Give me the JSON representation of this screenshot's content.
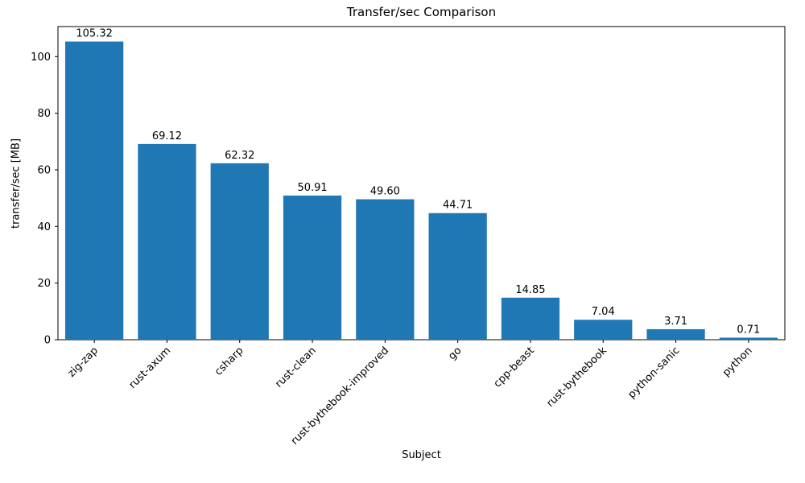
{
  "chart_data": {
    "type": "bar",
    "title": "Transfer/sec Comparison",
    "xlabel": "Subject",
    "ylabel": "transfer/sec [MB]",
    "categories": [
      "zig-zap",
      "rust-axum",
      "csharp",
      "rust-clean",
      "rust-bythebook-improved",
      "go",
      "cpp-beast",
      "rust-bythebook",
      "python-sanic",
      "python"
    ],
    "values": [
      105.32,
      69.12,
      62.32,
      50.91,
      49.6,
      44.71,
      14.85,
      7.04,
      3.71,
      0.71
    ],
    "value_labels": [
      "105.32",
      "69.12",
      "62.32",
      "50.91",
      "49.60",
      "44.71",
      "14.85",
      "7.04",
      "3.71",
      "0.71"
    ],
    "yticks": [
      0,
      20,
      40,
      60,
      80,
      100
    ],
    "ylim": [
      0,
      110.6
    ],
    "bar_color": "#1f77b4",
    "axis_color": "#000000",
    "grid": false,
    "legend": null,
    "x_tick_rotation_deg": 45
  }
}
